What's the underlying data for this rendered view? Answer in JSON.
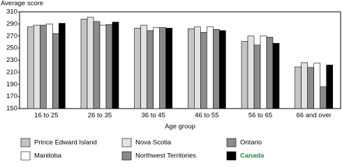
{
  "chart_data": {
    "type": "bar",
    "y_label": "Average score",
    "x_label": "Age group",
    "categories": [
      "16 to 25",
      "26 to 35",
      "36 to 45",
      "46 to 55",
      "56 to 65",
      "66 and over"
    ],
    "series": [
      {
        "name": "Prince Edward Island",
        "color": "#c4c4c4",
        "values": [
          285,
          298,
          283,
          282,
          261,
          219
        ]
      },
      {
        "name": "Nova Scotia",
        "color": "#e2e2e2",
        "values": [
          288,
          301,
          288,
          285,
          270,
          226
        ]
      },
      {
        "name": "Ontario",
        "color": "#8c8c8c",
        "values": [
          288,
          294,
          279,
          276,
          255,
          218
        ]
      },
      {
        "name": "Manitoba",
        "color": "#ffffff",
        "values": [
          290,
          288,
          284,
          285,
          270,
          225
        ]
      },
      {
        "name": "Northwest Territories",
        "color": "#8a8a8a",
        "values": [
          274,
          289,
          284,
          281,
          268,
          186
        ]
      },
      {
        "name": "Canada",
        "color": "#000000",
        "values": [
          291,
          293,
          283,
          279,
          258,
          222
        ]
      }
    ],
    "ylim": [
      150,
      310
    ],
    "yticks": [
      150,
      170,
      190,
      210,
      230,
      250,
      270,
      290,
      310
    ],
    "grid": false
  }
}
